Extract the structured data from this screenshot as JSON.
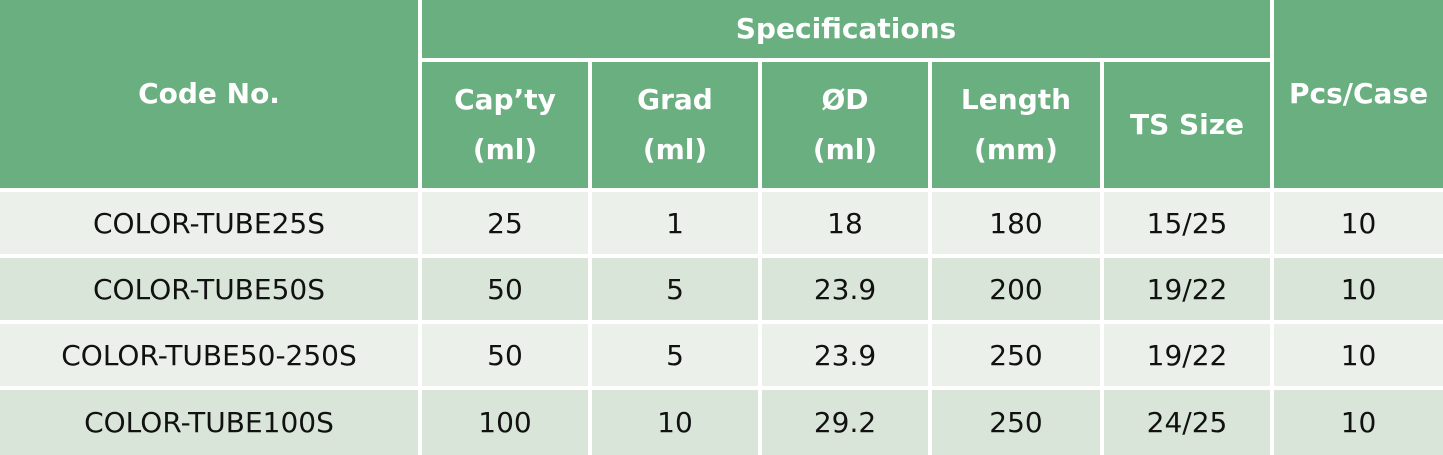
{
  "table": {
    "header": {
      "code": "Code No.",
      "group": "Specifications",
      "pcs": "Pcs/Case",
      "columns": [
        [
          "Cap’ty",
          "(ml)"
        ],
        [
          "Grad",
          "(ml)"
        ],
        [
          "ØD",
          "(ml)"
        ],
        [
          "Length",
          "(mm)"
        ],
        [
          "TS Size"
        ]
      ]
    },
    "rows": [
      [
        "COLOR-TUBE25S",
        "25",
        "1",
        "18",
        "180",
        "15/25",
        "10"
      ],
      [
        "COLOR-TUBE50S",
        "50",
        "5",
        "23.9",
        "200",
        "19/22",
        "10"
      ],
      [
        "COLOR-TUBE50-250S",
        "50",
        "5",
        "23.9",
        "250",
        "19/22",
        "10"
      ],
      [
        "COLOR-TUBE100S",
        "100",
        "10",
        "29.2",
        "250",
        "24/25",
        "10"
      ]
    ]
  }
}
